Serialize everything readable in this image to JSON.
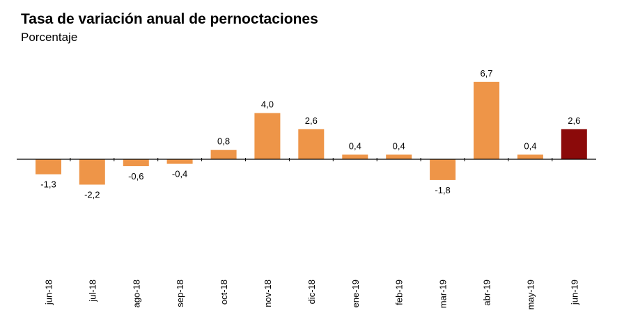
{
  "chart_data": {
    "type": "bar",
    "title": "Tasa de variación anual de pernoctaciones",
    "subtitle": "Porcentaje",
    "categories": [
      "jun-18",
      "jul-18",
      "ago-18",
      "sep-18",
      "oct-18",
      "nov-18",
      "dic-18",
      "ene-19",
      "feb-19",
      "mar-19",
      "abr-19",
      "may-19",
      "jun-19"
    ],
    "values": [
      -1.3,
      -2.2,
      -0.6,
      -0.4,
      0.8,
      4.0,
      2.6,
      0.4,
      0.4,
      -1.8,
      6.7,
      0.4,
      2.6
    ],
    "value_labels": [
      "-1,3",
      "-2,2",
      "-0,6",
      "-0,4",
      "0,8",
      "4,0",
      "2,6",
      "0,4",
      "0,4",
      "-1,8",
      "6,7",
      "0,4",
      "2,6"
    ],
    "colors": {
      "default": "#ee9548",
      "highlight": "#8b0a0a"
    },
    "highlight_index": 12,
    "grid": false,
    "legend": "none"
  }
}
